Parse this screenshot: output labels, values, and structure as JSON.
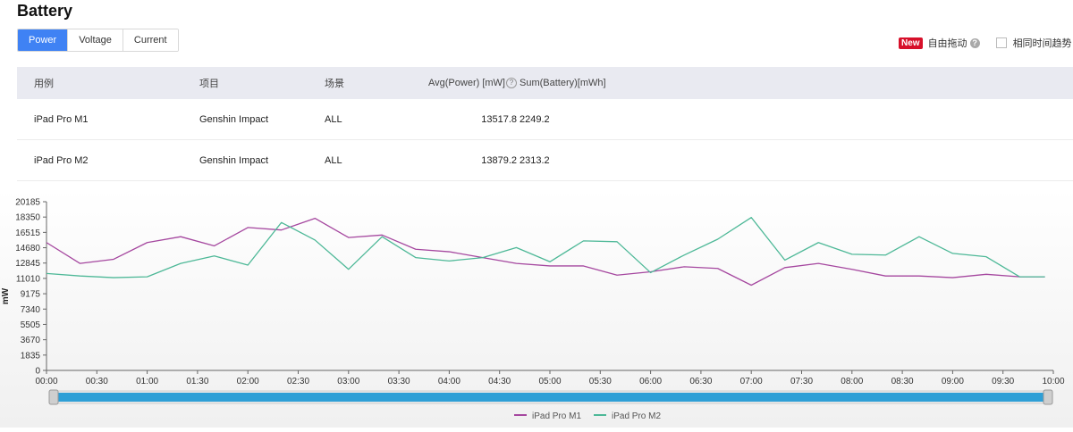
{
  "page": {
    "title": "Battery"
  },
  "tabs": [
    {
      "label": "Power",
      "active": true
    },
    {
      "label": "Voltage",
      "active": false
    },
    {
      "label": "Current",
      "active": false
    }
  ],
  "toolbar": {
    "new_badge": "New",
    "free_drag_label": "自由拖动",
    "same_time_trend_label": "相同时间趋势"
  },
  "table": {
    "headers": [
      "用例",
      "项目",
      "场景",
      "Avg(Power) [mW]",
      "Sum(Battery)[mWh]"
    ],
    "rows": [
      [
        "iPad Pro M1",
        "Genshin Impact",
        "ALL",
        "13517.8",
        "2249.2"
      ],
      [
        "iPad Pro M2",
        "Genshin Impact",
        "ALL",
        "13879.2",
        "2313.2"
      ]
    ]
  },
  "chart_data": {
    "type": "line",
    "title": "",
    "xlabel": "",
    "ylabel": "mW",
    "ylim": [
      0,
      20185
    ],
    "y_ticks": [
      "20185",
      "18350",
      "16515",
      "14680",
      "12845",
      "11010",
      "9175",
      "7340",
      "5505",
      "3670",
      "1835",
      "0"
    ],
    "x_ticks": [
      "00:00",
      "00:30",
      "01:00",
      "01:30",
      "02:00",
      "02:30",
      "03:00",
      "03:30",
      "04:00",
      "04:30",
      "05:00",
      "05:30",
      "06:00",
      "06:30",
      "07:00",
      "07:30",
      "08:00",
      "08:30",
      "09:00",
      "09:30",
      "10:00"
    ],
    "x_minutes": [
      0,
      20,
      40,
      60,
      80,
      100,
      120,
      140,
      160,
      180,
      200,
      220,
      240,
      260,
      280,
      300,
      320,
      340,
      360,
      380,
      400,
      420,
      440,
      460,
      480,
      500,
      520,
      540,
      560,
      580,
      595
    ],
    "series": [
      {
        "name": "iPad Pro M1",
        "color": "#a5479f",
        "values": [
          15300,
          12800,
          13300,
          15300,
          16000,
          14900,
          17100,
          16800,
          18200,
          15900,
          16200,
          14500,
          14200,
          13500,
          12800,
          12500,
          12500,
          11400,
          11800,
          12400,
          12200,
          10200,
          12300,
          12800,
          12100,
          11300,
          11300,
          11100,
          11500,
          11200,
          11200
        ]
      },
      {
        "name": "iPad Pro M2",
        "color": "#4db897",
        "values": [
          11600,
          11300,
          11100,
          11200,
          12800,
          13700,
          12600,
          17700,
          15600,
          12100,
          16000,
          13500,
          13100,
          13500,
          14700,
          13000,
          15500,
          15400,
          11700,
          13800,
          15700,
          18300,
          13200,
          15300,
          13900,
          13800,
          16000,
          14000,
          13600,
          11200,
          11200
        ]
      }
    ],
    "grid": "none",
    "legend_position": "bottom-center"
  }
}
